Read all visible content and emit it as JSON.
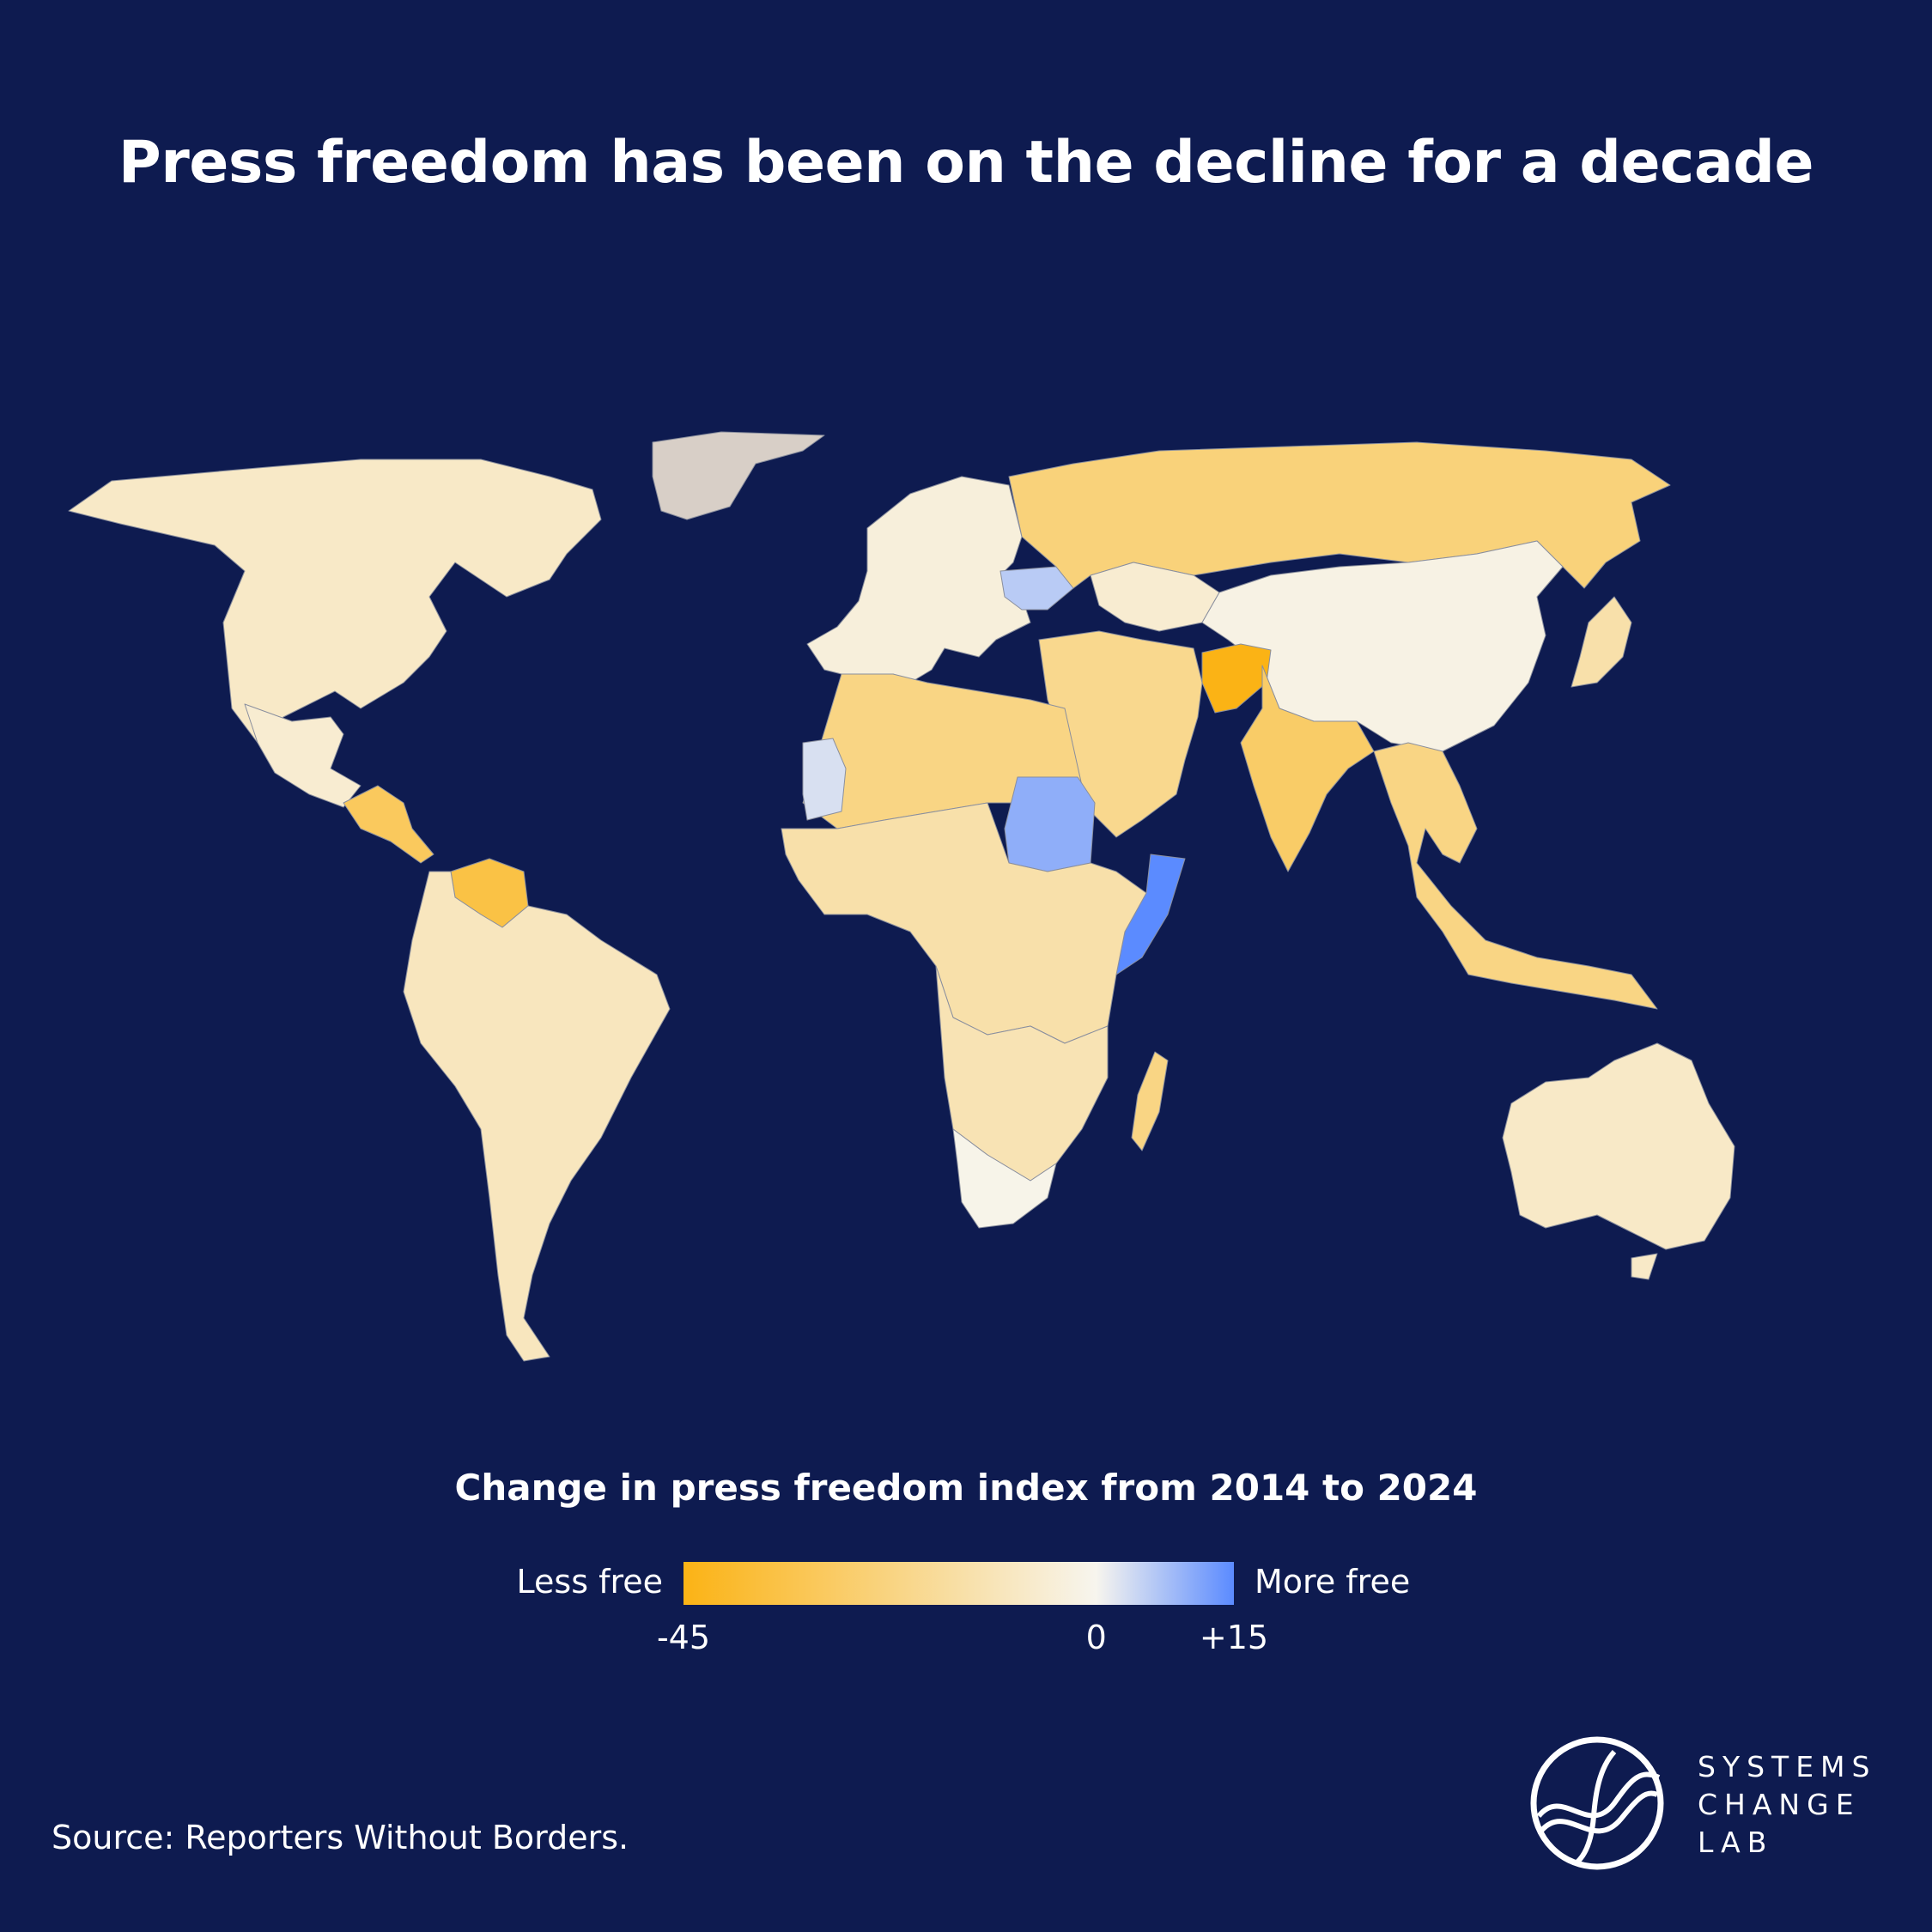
{
  "title": "Press freedom has been on the decline for a decade",
  "legend": {
    "title": "Change in press freedom index from 2014 to 2024",
    "left_label": "Less free",
    "right_label": "More free",
    "ticks": [
      {
        "label": "-45",
        "value": -45
      },
      {
        "label": "0",
        "value": 0
      },
      {
        "label": "+15",
        "value": 15
      }
    ],
    "colors": {
      "min": "#fbb315",
      "mid": "#f7f5ee",
      "max": "#5b8bff"
    }
  },
  "source": "Source: Reporters Without Borders.",
  "logo": {
    "lines": [
      "SYSTEMS",
      "CHANGE",
      "LAB"
    ],
    "icon": "systems-change-lab-logo-icon"
  },
  "colors": {
    "background": "#0e1b50",
    "no_data": "#d8cfc7"
  },
  "map_data": {
    "type": "choropleth",
    "scale": [
      -45,
      0,
      15
    ],
    "regions": [
      {
        "name": "North America",
        "value": -8
      },
      {
        "name": "Greenland",
        "value": null
      },
      {
        "name": "Mexico",
        "value": -6
      },
      {
        "name": "Central America",
        "value": -30
      },
      {
        "name": "Venezuela",
        "value": -35
      },
      {
        "name": "South America",
        "value": -10
      },
      {
        "name": "Europe",
        "value": -4
      },
      {
        "name": "Russia",
        "value": -24
      },
      {
        "name": "Ukraine",
        "value": 6
      },
      {
        "name": "China",
        "value": -2
      },
      {
        "name": "Kazakhstan",
        "value": -6
      },
      {
        "name": "India",
        "value": -28
      },
      {
        "name": "Afghanistan",
        "value": -45
      },
      {
        "name": "Middle East",
        "value": -20
      },
      {
        "name": "North Africa",
        "value": -22
      },
      {
        "name": "Mauritania",
        "value": 3
      },
      {
        "name": "Sudan",
        "value": 10
      },
      {
        "name": "Somalia",
        "value": 15
      },
      {
        "name": "Central Africa",
        "value": -14
      },
      {
        "name": "Southern Africa",
        "value": -12
      },
      {
        "name": "South Africa",
        "value": -1
      },
      {
        "name": "Madagascar",
        "value": -22
      },
      {
        "name": "Southeast Asia",
        "value": -22
      },
      {
        "name": "Australia",
        "value": -8
      },
      {
        "name": "Japan",
        "value": -14
      }
    ]
  }
}
